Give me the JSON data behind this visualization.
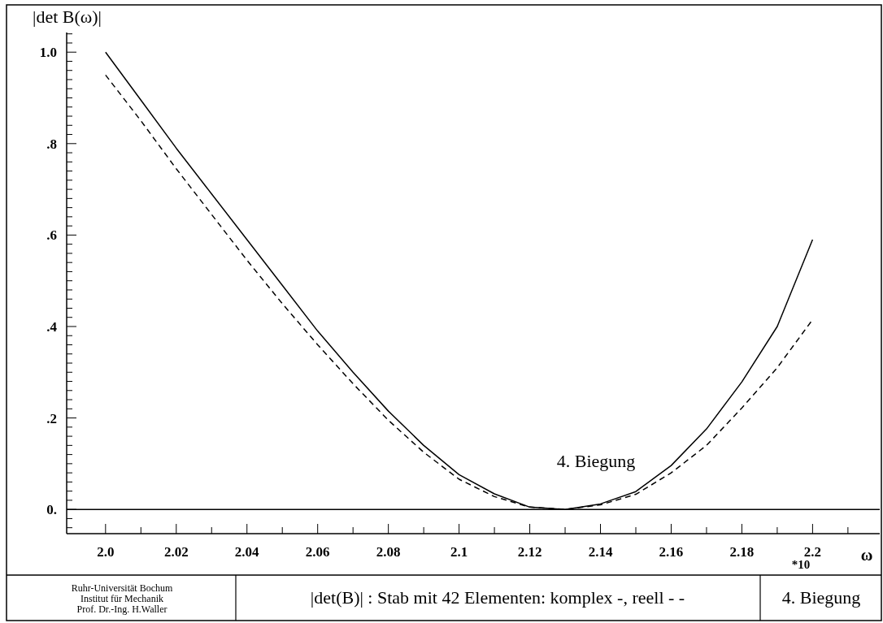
{
  "chart_data": {
    "type": "line",
    "ylabel": "|det B(ω)|",
    "xlabel": "ω",
    "annotations": [
      "4. Biegung",
      "*10",
      "Ruhr-Universität Bochum\nInstitut für Mechanik\nProf. Dr.-Ing. H.Waller",
      "|det(B)| : Stab mit 42 Elementen: komplex -, reell - -",
      "4. Biegung"
    ],
    "x": [
      2.0,
      2.01,
      2.02,
      2.03,
      2.04,
      2.05,
      2.06,
      2.07,
      2.08,
      2.09,
      2.1,
      2.11,
      2.12,
      2.13,
      2.14,
      2.15,
      2.16,
      2.17,
      2.18,
      2.19,
      2.2
    ],
    "series": [
      {
        "color": "#000000",
        "line_style": "solid",
        "values": [
          1.0,
          0.895,
          0.79,
          0.69,
          0.59,
          0.49,
          0.39,
          0.3,
          0.215,
          0.14,
          0.076,
          0.034,
          0.005,
          0.0,
          0.012,
          0.039,
          0.096,
          0.176,
          0.279,
          0.4,
          0.59
        ]
      },
      {
        "color": "#000000",
        "line_style": "dashed",
        "values": [
          0.95,
          0.85,
          0.745,
          0.645,
          0.545,
          0.45,
          0.36,
          0.275,
          0.195,
          0.125,
          0.066,
          0.028,
          0.005,
          0.0,
          0.01,
          0.033,
          0.08,
          0.14,
          0.222,
          0.31,
          0.415
        ]
      }
    ],
    "xlim": [
      1.989,
      2.219
    ],
    "ylim": [
      -0.053,
      1.043
    ],
    "xticks": [
      {
        "value": 2.0,
        "label": "2.0"
      },
      {
        "value": 2.01,
        "label": null
      },
      {
        "value": 2.02,
        "label": "2.02"
      },
      {
        "value": 2.03,
        "label": null
      },
      {
        "value": 2.04,
        "label": "2.04"
      },
      {
        "value": 2.05,
        "label": null
      },
      {
        "value": 2.06,
        "label": "2.06"
      },
      {
        "value": 2.07,
        "label": null
      },
      {
        "value": 2.08,
        "label": "2.08"
      },
      {
        "value": 2.09,
        "label": null
      },
      {
        "value": 2.1,
        "label": "2.1"
      },
      {
        "value": 2.11,
        "label": null
      },
      {
        "value": 2.12,
        "label": "2.12"
      },
      {
        "value": 2.13,
        "label": null
      },
      {
        "value": 2.14,
        "label": "2.14"
      },
      {
        "value": 2.15,
        "label": null
      },
      {
        "value": 2.16,
        "label": "2.16"
      },
      {
        "value": 2.17,
        "label": null
      },
      {
        "value": 2.18,
        "label": "2.18"
      },
      {
        "value": 2.19,
        "label": null
      },
      {
        "value": 2.2,
        "label": "2.2"
      },
      {
        "value": 2.21,
        "label": null
      }
    ],
    "yticks": [
      {
        "value": -0.04,
        "label": null
      },
      {
        "value": -0.02,
        "label": null
      },
      {
        "value": 0,
        "label": "0."
      },
      {
        "value": 0.02,
        "label": null
      },
      {
        "value": 0.04,
        "label": null
      },
      {
        "value": 0.06,
        "label": null
      },
      {
        "value": 0.08,
        "label": null
      },
      {
        "value": 0.1,
        "label": null
      },
      {
        "value": 0.12,
        "label": null
      },
      {
        "value": 0.14,
        "label": null
      },
      {
        "value": 0.16,
        "label": null
      },
      {
        "value": 0.18,
        "label": null
      },
      {
        "value": 0.2,
        "label": ".2"
      },
      {
        "value": 0.22,
        "label": null
      },
      {
        "value": 0.24,
        "label": null
      },
      {
        "value": 0.26,
        "label": null
      },
      {
        "value": 0.28,
        "label": null
      },
      {
        "value": 0.3,
        "label": null
      },
      {
        "value": 0.32,
        "label": null
      },
      {
        "value": 0.34,
        "label": null
      },
      {
        "value": 0.36,
        "label": null
      },
      {
        "value": 0.38,
        "label": null
      },
      {
        "value": 0.4,
        "label": ".4"
      },
      {
        "value": 0.42,
        "label": null
      },
      {
        "value": 0.44,
        "label": null
      },
      {
        "value": 0.46,
        "label": null
      },
      {
        "value": 0.48,
        "label": null
      },
      {
        "value": 0.5,
        "label": null
      },
      {
        "value": 0.52,
        "label": null
      },
      {
        "value": 0.54,
        "label": null
      },
      {
        "value": 0.56,
        "label": null
      },
      {
        "value": 0.58,
        "label": null
      },
      {
        "value": 0.6,
        "label": ".6"
      },
      {
        "value": 0.62,
        "label": null
      },
      {
        "value": 0.64,
        "label": null
      },
      {
        "value": 0.66,
        "label": null
      },
      {
        "value": 0.68,
        "label": null
      },
      {
        "value": 0.7,
        "label": null
      },
      {
        "value": 0.72,
        "label": null
      },
      {
        "value": 0.74,
        "label": null
      },
      {
        "value": 0.76,
        "label": null
      },
      {
        "value": 0.78,
        "label": null
      },
      {
        "value": 0.8,
        "label": ".8"
      },
      {
        "value": 0.82,
        "label": null
      },
      {
        "value": 0.84,
        "label": null
      },
      {
        "value": 0.86,
        "label": null
      },
      {
        "value": 0.88,
        "label": null
      },
      {
        "value": 0.9,
        "label": null
      },
      {
        "value": 0.92,
        "label": null
      },
      {
        "value": 0.94,
        "label": null
      },
      {
        "value": 0.96,
        "label": null
      },
      {
        "value": 0.98,
        "label": null
      },
      {
        "value": 1.0,
        "label": "1.0"
      },
      {
        "value": 1.02,
        "label": null
      },
      {
        "value": 1.04,
        "label": null
      }
    ],
    "ref_lines": [
      {
        "axis": "y",
        "value": 0,
        "color": "#000000"
      }
    ],
    "grid": false
  }
}
